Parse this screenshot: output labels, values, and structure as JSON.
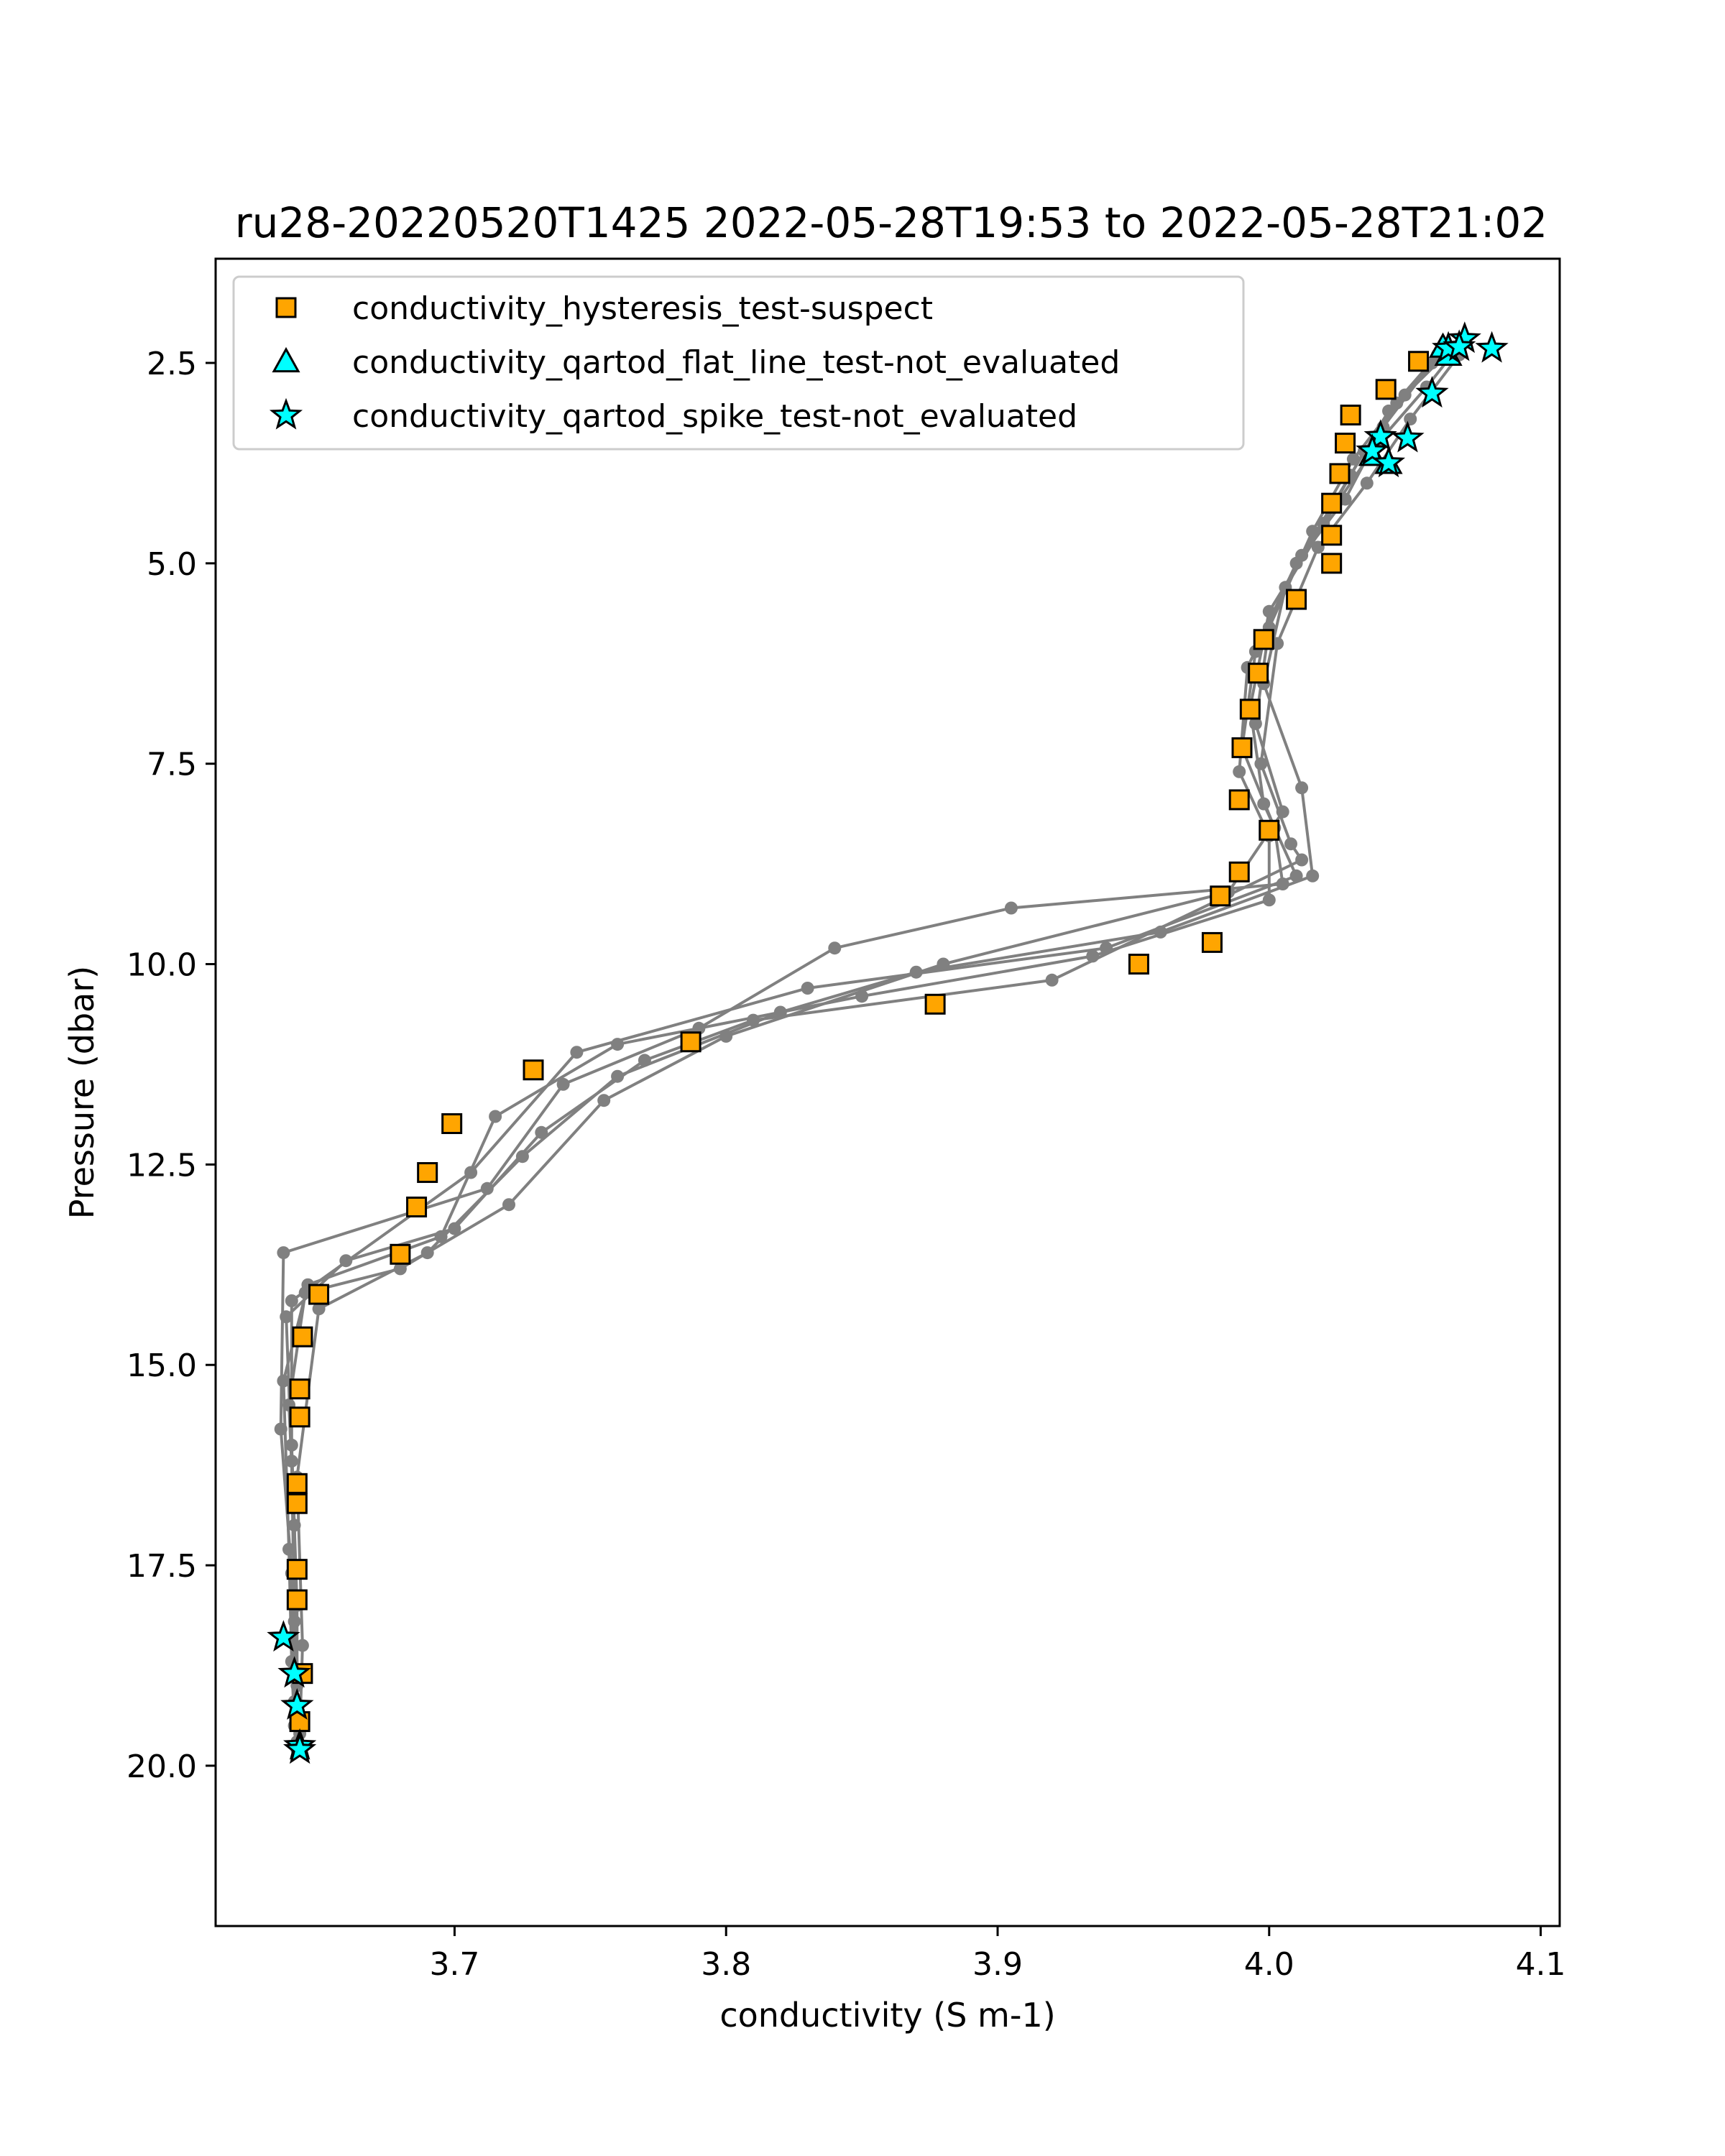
{
  "chart_data": {
    "type": "scatter",
    "title": "ru28-20220520T1425 2022-05-28T19:53 to 2022-05-28T21:02",
    "xlabel": "conductivity (S m-1)",
    "ylabel": "Pressure (dbar)",
    "xlim": [
      3.612,
      4.107
    ],
    "ylim": [
      22.0,
      1.2
    ],
    "y_inverted": true,
    "grid": false,
    "legend_position": "top-left",
    "x_ticks": [
      {
        "value": 3.7,
        "label": "3.7"
      },
      {
        "value": 3.8,
        "label": "3.8"
      },
      {
        "value": 3.9,
        "label": "3.9"
      },
      {
        "value": 4.0,
        "label": "4.0"
      },
      {
        "value": 4.1,
        "label": "4.1"
      }
    ],
    "y_ticks": [
      {
        "value": 2.5,
        "label": "2.5"
      },
      {
        "value": 5.0,
        "label": "5.0"
      },
      {
        "value": 7.5,
        "label": "7.5"
      },
      {
        "value": 10.0,
        "label": "10.0"
      },
      {
        "value": 12.5,
        "label": "12.5"
      },
      {
        "value": 15.0,
        "label": "15.0"
      },
      {
        "value": 17.5,
        "label": "17.5"
      },
      {
        "value": 20.0,
        "label": "20.0"
      }
    ],
    "colors": {
      "profile_line": "#808080",
      "hysteresis_marker": "#ffa500",
      "flat_line_marker": "#00ffff",
      "spike_marker": "#00ffff",
      "marker_edge": "#000000"
    },
    "profiles": [
      [
        [
          4.068,
          2.3
        ],
        [
          4.05,
          2.9
        ],
        [
          4.035,
          3.6
        ],
        [
          4.02,
          4.5
        ],
        [
          4.0,
          5.6
        ],
        [
          3.993,
          6.8
        ],
        [
          3.998,
          8.0
        ],
        [
          4.01,
          8.9
        ],
        [
          3.94,
          9.8
        ],
        [
          3.83,
          10.3
        ],
        [
          3.745,
          11.1
        ],
        [
          3.706,
          12.6
        ],
        [
          3.64,
          14.2
        ],
        [
          3.64,
          16.0
        ],
        [
          3.642,
          18.0
        ],
        [
          3.642,
          19.7
        ]
      ],
      [
        [
          4.062,
          2.4
        ],
        [
          4.044,
          3.1
        ],
        [
          4.03,
          3.9
        ],
        [
          4.012,
          4.9
        ],
        [
          3.995,
          6.1
        ],
        [
          3.99,
          7.3
        ],
        [
          4.002,
          8.3
        ],
        [
          4.005,
          9.0
        ],
        [
          3.905,
          9.3
        ],
        [
          3.84,
          9.8
        ],
        [
          3.79,
          10.8
        ],
        [
          3.74,
          11.5
        ],
        [
          3.712,
          12.8
        ],
        [
          3.637,
          13.6
        ],
        [
          3.636,
          15.8
        ],
        [
          3.64,
          17.6
        ],
        [
          3.641,
          19.2
        ]
      ],
      [
        [
          4.072,
          2.2
        ],
        [
          4.058,
          2.8
        ],
        [
          4.04,
          3.5
        ],
        [
          4.024,
          4.3
        ],
        [
          4.006,
          5.3
        ],
        [
          3.998,
          6.5
        ],
        [
          4.012,
          7.8
        ],
        [
          4.016,
          8.9
        ],
        [
          3.96,
          9.6
        ],
        [
          3.87,
          10.1
        ],
        [
          3.82,
          10.6
        ],
        [
          3.76,
          11.4
        ],
        [
          3.725,
          12.4
        ],
        [
          3.69,
          13.6
        ],
        [
          3.65,
          14.3
        ],
        [
          3.642,
          16.4
        ],
        [
          3.644,
          18.5
        ],
        [
          3.643,
          19.6
        ]
      ],
      [
        [
          4.065,
          2.3
        ],
        [
          4.047,
          3.0
        ],
        [
          4.031,
          3.7
        ],
        [
          4.016,
          4.6
        ],
        [
          4.0,
          5.8
        ],
        [
          3.995,
          7.0
        ],
        [
          4.005,
          8.1
        ],
        [
          3.985,
          9.1
        ],
        [
          3.88,
          10.0
        ],
        [
          3.8,
          10.9
        ],
        [
          3.755,
          11.7
        ],
        [
          3.72,
          13.0
        ],
        [
          3.68,
          13.8
        ],
        [
          3.645,
          14.1
        ],
        [
          3.639,
          15.5
        ],
        [
          3.641,
          17.0
        ],
        [
          3.642,
          19.0
        ]
      ],
      [
        [
          4.07,
          2.4
        ],
        [
          4.052,
          3.2
        ],
        [
          4.036,
          4.0
        ],
        [
          4.018,
          4.8
        ],
        [
          4.003,
          6.0
        ],
        [
          3.997,
          7.5
        ],
        [
          4.008,
          8.5
        ],
        [
          4.012,
          8.7
        ],
        [
          3.92,
          10.2
        ],
        [
          3.81,
          10.7
        ],
        [
          3.77,
          11.2
        ],
        [
          3.732,
          12.1
        ],
        [
          3.7,
          13.3
        ],
        [
          3.66,
          13.7
        ],
        [
          3.638,
          14.4
        ],
        [
          3.64,
          16.2
        ],
        [
          3.641,
          18.2
        ],
        [
          3.642,
          19.8
        ]
      ],
      [
        [
          4.06,
          2.5
        ],
        [
          4.042,
          3.3
        ],
        [
          4.028,
          4.2
        ],
        [
          4.01,
          5.0
        ],
        [
          3.992,
          6.3
        ],
        [
          3.989,
          7.6
        ],
        [
          4.0,
          8.4
        ],
        [
          4.0,
          9.2
        ],
        [
          3.935,
          9.9
        ],
        [
          3.85,
          10.4
        ],
        [
          3.76,
          11.0
        ],
        [
          3.715,
          11.9
        ],
        [
          3.695,
          13.4
        ],
        [
          3.646,
          14.0
        ],
        [
          3.637,
          15.2
        ],
        [
          3.639,
          17.3
        ],
        [
          3.64,
          18.7
        ],
        [
          3.641,
          19.5
        ]
      ]
    ],
    "series": [
      {
        "name": "conductivity_hysteresis_test-suspect",
        "marker": "square",
        "points": [
          [
            4.055,
            2.48
          ],
          [
            4.043,
            2.83
          ],
          [
            4.03,
            3.15
          ],
          [
            4.028,
            3.5
          ],
          [
            4.026,
            3.88
          ],
          [
            4.023,
            4.25
          ],
          [
            4.023,
            4.65
          ],
          [
            4.023,
            5.0
          ],
          [
            4.01,
            5.45
          ],
          [
            3.998,
            5.95
          ],
          [
            3.996,
            6.37
          ],
          [
            3.993,
            6.82
          ],
          [
            3.99,
            7.3
          ],
          [
            3.989,
            7.95
          ],
          [
            4.0,
            8.33
          ],
          [
            3.989,
            8.85
          ],
          [
            3.982,
            9.15
          ],
          [
            3.979,
            9.73
          ],
          [
            3.952,
            10.0
          ],
          [
            3.877,
            10.5
          ],
          [
            3.787,
            10.97
          ],
          [
            3.729,
            11.32
          ],
          [
            3.699,
            11.99
          ],
          [
            3.69,
            12.6
          ],
          [
            3.686,
            13.03
          ],
          [
            3.68,
            13.62
          ],
          [
            3.65,
            14.12
          ],
          [
            3.644,
            14.65
          ],
          [
            3.643,
            15.3
          ],
          [
            3.643,
            15.65
          ],
          [
            3.642,
            16.48
          ],
          [
            3.642,
            16.73
          ],
          [
            3.642,
            17.55
          ],
          [
            3.642,
            17.93
          ],
          [
            3.644,
            18.85
          ],
          [
            3.643,
            19.45
          ]
        ]
      },
      {
        "name": "conductivity_qartod_flat_line_test-not_evaluated",
        "marker": "triangle",
        "points": [
          [
            4.064,
            2.3
          ],
          [
            4.066,
            2.4
          ],
          [
            4.038,
            3.65
          ],
          [
            4.044,
            3.75
          ]
        ]
      },
      {
        "name": "conductivity_qartod_spike_test-not_evaluated",
        "marker": "star",
        "points": [
          [
            4.072,
            2.2
          ],
          [
            4.066,
            2.32
          ],
          [
            4.082,
            2.32
          ],
          [
            4.07,
            2.3
          ],
          [
            4.06,
            2.88
          ],
          [
            4.051,
            3.44
          ],
          [
            4.041,
            3.42
          ],
          [
            4.038,
            3.6
          ],
          [
            4.044,
            3.75
          ],
          [
            3.637,
            18.4
          ],
          [
            3.641,
            18.85
          ],
          [
            3.642,
            19.25
          ],
          [
            3.643,
            19.75
          ],
          [
            3.643,
            19.8
          ]
        ]
      }
    ]
  }
}
